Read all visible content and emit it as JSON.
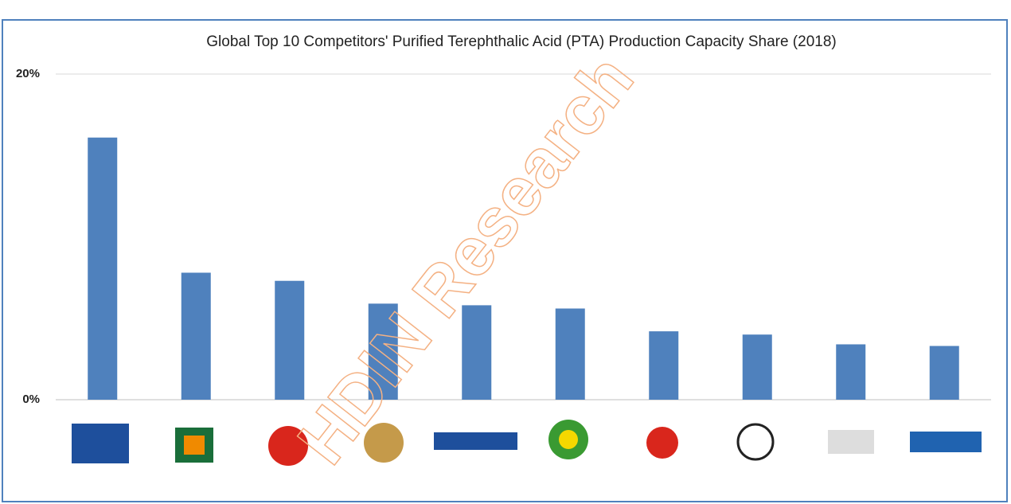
{
  "chart_data": {
    "type": "bar",
    "title": "Global Top 10 Competitors' Purified Terephthalic Acid (PTA) Production Capacity Share (2018)",
    "watermark": "HDIN Research",
    "categories": [
      null,
      null,
      null,
      null,
      null,
      null,
      null,
      null,
      null,
      null
    ],
    "values": [
      16.1,
      7.8,
      7.3,
      5.9,
      5.8,
      5.6,
      4.2,
      4.0,
      3.4,
      3.3
    ],
    "color": "#4f81bd",
    "ylim": [
      0,
      20
    ],
    "yticks": [
      {
        "value": 0,
        "label": "0%"
      },
      {
        "value": 20,
        "label": "20%"
      }
    ],
    "grid": true
  }
}
